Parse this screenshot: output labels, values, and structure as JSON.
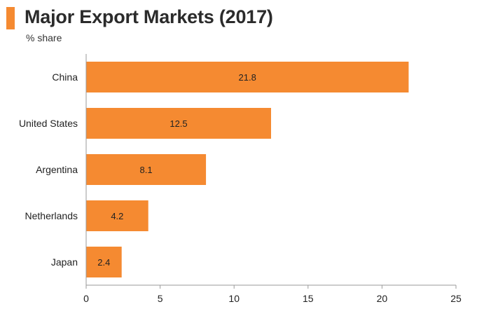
{
  "header": {
    "title": "Major Export Markets (2017)",
    "subtitle": "% share",
    "accent_color": "#F58A31"
  },
  "chart_data": {
    "type": "bar",
    "orientation": "horizontal",
    "title": "Major Export Markets (2017)",
    "subtitle": "% share",
    "categories": [
      "China",
      "United States",
      "Argentina",
      "Netherlands",
      "Japan"
    ],
    "values": [
      21.8,
      12.5,
      8.1,
      4.2,
      2.4
    ],
    "value_labels": [
      "21.8",
      "12.5",
      "8.1",
      "4.2",
      "2.4"
    ],
    "xlim": [
      0,
      25
    ],
    "xticks": [
      0,
      5,
      10,
      15,
      20,
      25
    ],
    "xtick_labels": [
      "0",
      "5",
      "10",
      "15",
      "20",
      "25"
    ],
    "bar_color": "#F58A31",
    "grid": false,
    "legend": "none"
  }
}
